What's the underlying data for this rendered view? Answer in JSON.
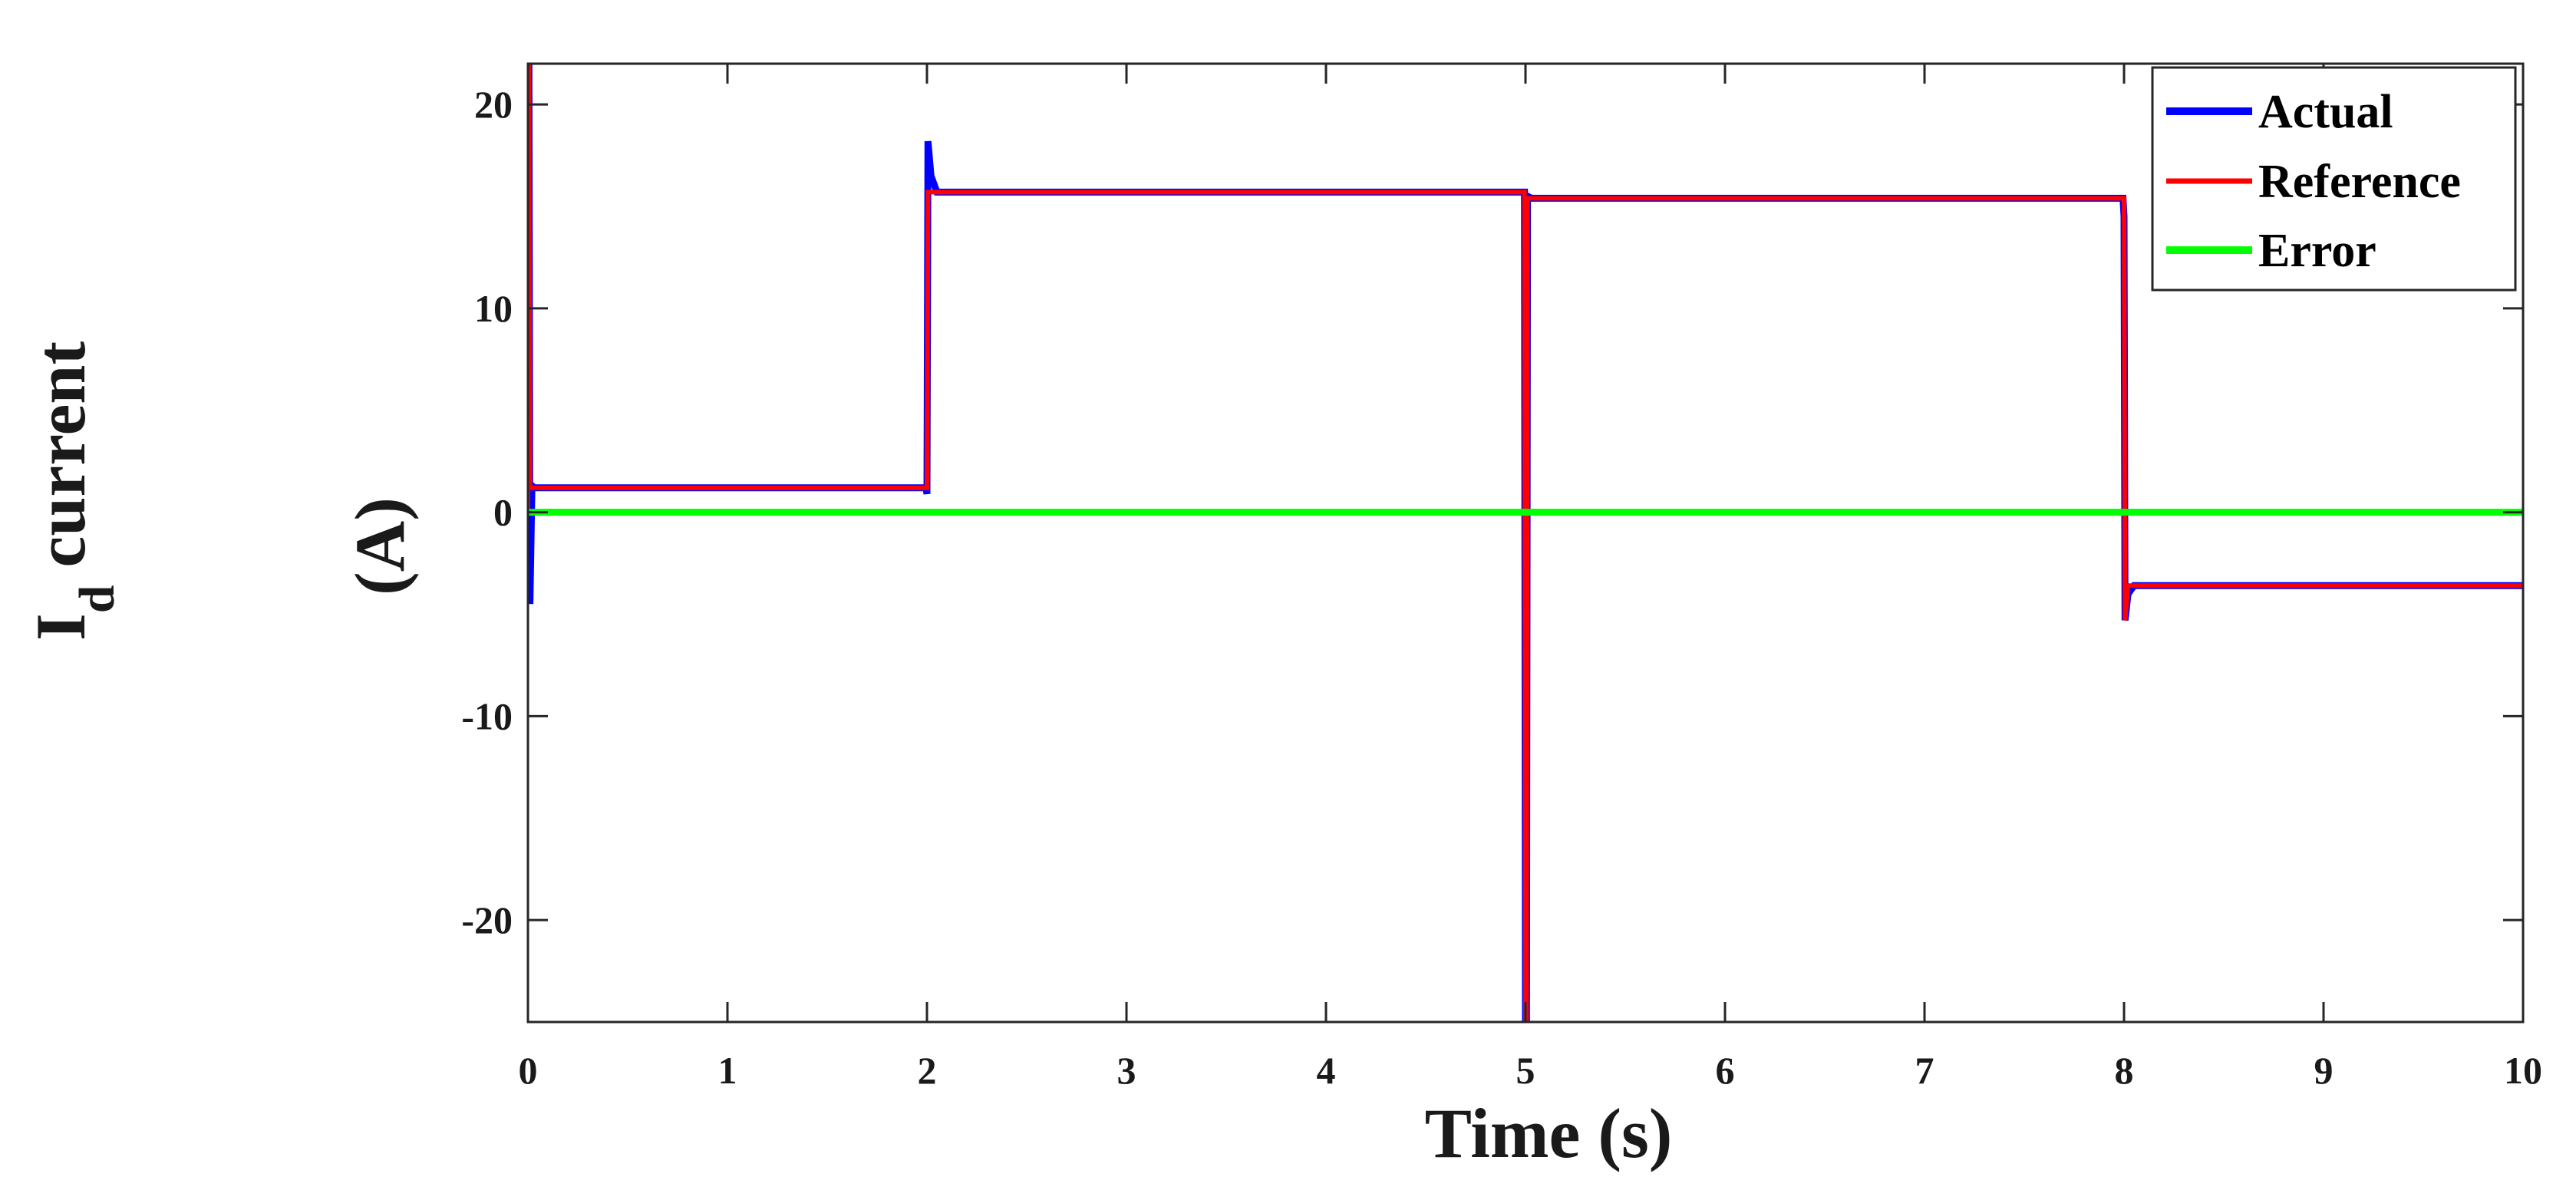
{
  "chart_data": {
    "type": "line",
    "title": "",
    "xlabel": "Time (s)",
    "ylabel": {
      "main": "I",
      "subscript": "d",
      "rest": " current",
      "unit": "(A)"
    },
    "xlim": [
      0,
      10
    ],
    "ylim": [
      -25,
      22
    ],
    "xticks": [
      0,
      1,
      2,
      3,
      4,
      5,
      6,
      7,
      8,
      9,
      10
    ],
    "xtick_labels": [
      "0",
      "1",
      "2",
      "3",
      "4",
      "5",
      "6",
      "7",
      "8",
      "9",
      "10"
    ],
    "yticks": [
      20,
      10,
      0,
      -10,
      -20
    ],
    "ytick_labels": [
      "20",
      "10",
      "0",
      "-10",
      "-20"
    ],
    "grid": false,
    "legend_position": "top-right",
    "series": [
      {
        "name": "Actual",
        "color": "#0000ff",
        "x": [
          0,
          0.005,
          0.01,
          0.02,
          0.03,
          1.995,
          2.0,
          2.005,
          2.02,
          2.05,
          4.995,
          5.0,
          5.005,
          5.01,
          5.03,
          7.995,
          8.0,
          8.005,
          8.02,
          8.05,
          10.0
        ],
        "y": [
          0,
          22,
          -4.5,
          1.3,
          1.2,
          1.2,
          0.9,
          18.2,
          16.5,
          15.7,
          15.7,
          -25,
          -25,
          15.5,
          15.4,
          15.4,
          14.5,
          -5.3,
          -4.0,
          -3.6,
          -3.6
        ]
      },
      {
        "name": "Reference",
        "color": "#ff0000",
        "x": [
          0,
          0.005,
          0.01,
          0.02,
          1.995,
          2.0,
          2.005,
          2.02,
          4.995,
          5.0,
          5.005,
          5.01,
          7.995,
          8.0,
          8.005,
          8.02,
          10.0
        ],
        "y": [
          0,
          22,
          1.2,
          1.2,
          1.2,
          1.2,
          15.7,
          15.7,
          15.7,
          -25,
          -25,
          15.4,
          15.4,
          15.4,
          -5.3,
          -3.6,
          -3.6
        ]
      },
      {
        "name": "Error",
        "color": "#00ff00",
        "x": [
          0,
          10
        ],
        "y": [
          0,
          0
        ]
      }
    ]
  }
}
